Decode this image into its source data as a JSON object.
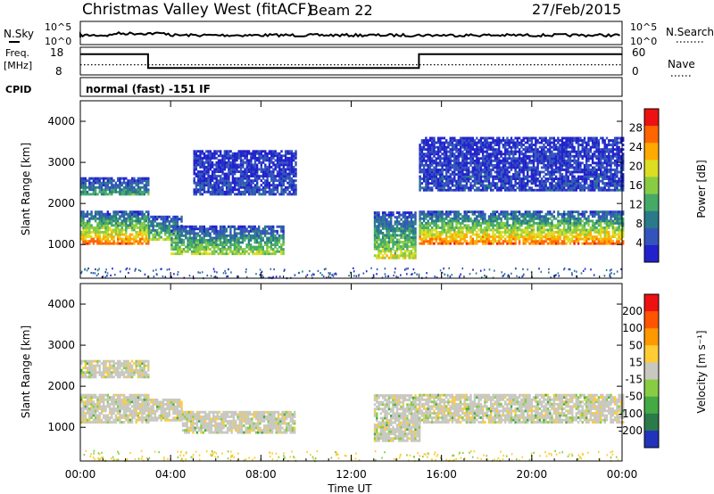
{
  "header": {
    "station": "Christmas Valley West (fitACF)",
    "beam": "Beam 22",
    "date": "27/Feb/2015"
  },
  "chart_data": [
    {
      "type": "line",
      "panel": "noise",
      "left_label": "N.Sky",
      "right_label": "N.Search",
      "left_ticks": [
        "10^5",
        "10^0"
      ],
      "right_ticks": [
        "10^5",
        "10^0"
      ]
    },
    {
      "type": "line",
      "panel": "frequency",
      "left_label": [
        "Freq.",
        "[MHz]"
      ],
      "right_label": "Nave",
      "left_ticks": [
        "18",
        "8"
      ],
      "right_ticks": [
        "60",
        "0"
      ],
      "freq_segments": [
        {
          "from": 0,
          "to": 3,
          "value": 15.5
        },
        {
          "from": 3,
          "to": 15,
          "value": 10.5
        },
        {
          "from": 15,
          "to": 24,
          "value": 15.5
        }
      ],
      "nave_dotted_value": 22
    },
    {
      "type": "table",
      "panel": "cpid",
      "label": "CPID",
      "text": "normal (fast) -151 IF"
    },
    {
      "type": "heatmap",
      "panel": "power",
      "ylabel": "Slant Range [km]",
      "ylim": [
        180,
        4500
      ],
      "yticks": [
        1000,
        2000,
        3000,
        4000
      ],
      "xlim": [
        0,
        24
      ],
      "colorbar": {
        "label": "Power [dB]",
        "ticks": [
          "28",
          "24",
          "20",
          "16",
          "12",
          "8",
          "4"
        ],
        "colors": [
          "#2222cc",
          "#3355bb",
          "#2a7a8a",
          "#44aa66",
          "#88cc44",
          "#dddd22",
          "#ffaa00",
          "#ff6600",
          "#ee1111"
        ]
      },
      "bands": [
        {
          "t0": 0.0,
          "t1": 3.0,
          "r0": 1000,
          "r1": 1800,
          "level": 0.85
        },
        {
          "t0": 0.0,
          "t1": 3.0,
          "r0": 2200,
          "r1": 2600,
          "level": 0.35
        },
        {
          "t0": 3.0,
          "t1": 4.5,
          "r0": 1100,
          "r1": 1700,
          "level": 0.5
        },
        {
          "t0": 4.0,
          "t1": 9.0,
          "r0": 750,
          "r1": 1450,
          "level": 0.55
        },
        {
          "t0": 5.0,
          "t1": 9.5,
          "r0": 2200,
          "r1": 3300,
          "level": 0.1
        },
        {
          "t0": 13.0,
          "t1": 14.8,
          "r0": 650,
          "r1": 1800,
          "level": 0.6
        },
        {
          "t0": 15.0,
          "t1": 24.0,
          "r0": 1000,
          "r1": 1800,
          "level": 0.85
        },
        {
          "t0": 15.0,
          "t1": 24.0,
          "r0": 2300,
          "r1": 3600,
          "level": 0.1
        }
      ]
    },
    {
      "type": "heatmap",
      "panel": "velocity",
      "ylabel": "Slant Range [km]",
      "ylim": [
        180,
        4500
      ],
      "yticks": [
        1000,
        2000,
        3000,
        4000
      ],
      "xlim": [
        0,
        24
      ],
      "xticks": [
        "00:00",
        "04:00",
        "08:00",
        "12:00",
        "16:00",
        "20:00",
        "00:00"
      ],
      "xlabel": "Time UT",
      "colorbar": {
        "label": "Velocity [m s⁻¹]",
        "ticks": [
          "200",
          "100",
          "50",
          "15",
          "-15",
          "-50",
          "-100",
          "-200"
        ],
        "colors": [
          "#2233bb",
          "#2a7a4a",
          "#44aa44",
          "#88cc44",
          "#c8c8c0",
          "#ffcc33",
          "#ff9900",
          "#ff5500",
          "#ee1111"
        ]
      },
      "bands": [
        {
          "t0": 0.0,
          "t1": 3.0,
          "r0": 1100,
          "r1": 1800,
          "level": 0.5
        },
        {
          "t0": 0.0,
          "t1": 3.0,
          "r0": 2200,
          "r1": 2600,
          "level": 0.5
        },
        {
          "t0": 3.0,
          "t1": 4.5,
          "r0": 1150,
          "r1": 1650,
          "level": 0.5
        },
        {
          "t0": 4.5,
          "t1": 9.5,
          "r0": 850,
          "r1": 1400,
          "level": 0.55
        },
        {
          "t0": 13.0,
          "t1": 15.0,
          "r0": 650,
          "r1": 1800,
          "level": 0.3
        },
        {
          "t0": 15.0,
          "t1": 24.0,
          "r0": 1100,
          "r1": 1800,
          "level": 0.5
        }
      ]
    }
  ]
}
